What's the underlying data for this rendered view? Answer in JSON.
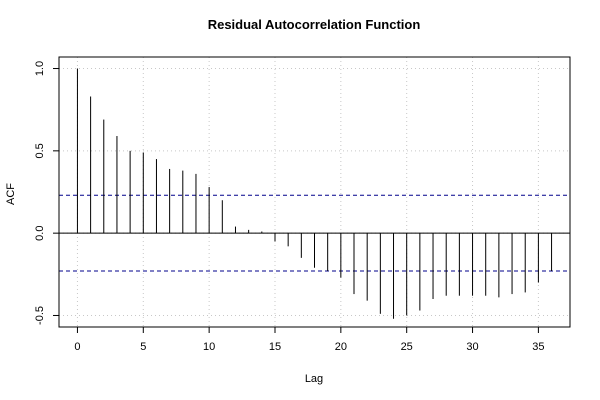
{
  "chart_data": {
    "type": "bar",
    "title": "Residual Autocorrelation Function",
    "xlabel": "Lag",
    "ylabel": "ACF",
    "x_ticks": [
      0,
      5,
      10,
      15,
      20,
      25,
      30,
      35
    ],
    "y_ticks": [
      -0.5,
      0.0,
      0.5,
      1.0
    ],
    "y_tick_labels": [
      "-0.5",
      "0.0",
      "0.5",
      "1.0"
    ],
    "xlim": [
      -1.4,
      37.4
    ],
    "ylim": [
      -0.57,
      1.07
    ],
    "grid": true,
    "confidence_bound": 0.23,
    "lags": [
      0,
      1,
      2,
      3,
      4,
      5,
      6,
      7,
      8,
      9,
      10,
      11,
      12,
      13,
      14,
      15,
      16,
      17,
      18,
      19,
      20,
      21,
      22,
      23,
      24,
      25,
      26,
      27,
      28,
      29,
      30,
      31,
      32,
      33,
      34,
      35,
      36
    ],
    "values": [
      1.0,
      0.83,
      0.69,
      0.59,
      0.5,
      0.49,
      0.45,
      0.39,
      0.38,
      0.36,
      0.28,
      0.2,
      0.04,
      0.02,
      0.01,
      -0.05,
      -0.08,
      -0.15,
      -0.21,
      -0.23,
      -0.27,
      -0.37,
      -0.41,
      -0.49,
      -0.52,
      -0.5,
      -0.47,
      -0.4,
      -0.38,
      -0.38,
      -0.38,
      -0.38,
      -0.39,
      -0.37,
      -0.36,
      -0.3,
      -0.23
    ]
  },
  "colors": {
    "bars": "#000000",
    "zero_line": "#000000",
    "bound_line": "#00008b",
    "grid": "#c8c8c8",
    "frame": "#000000"
  }
}
